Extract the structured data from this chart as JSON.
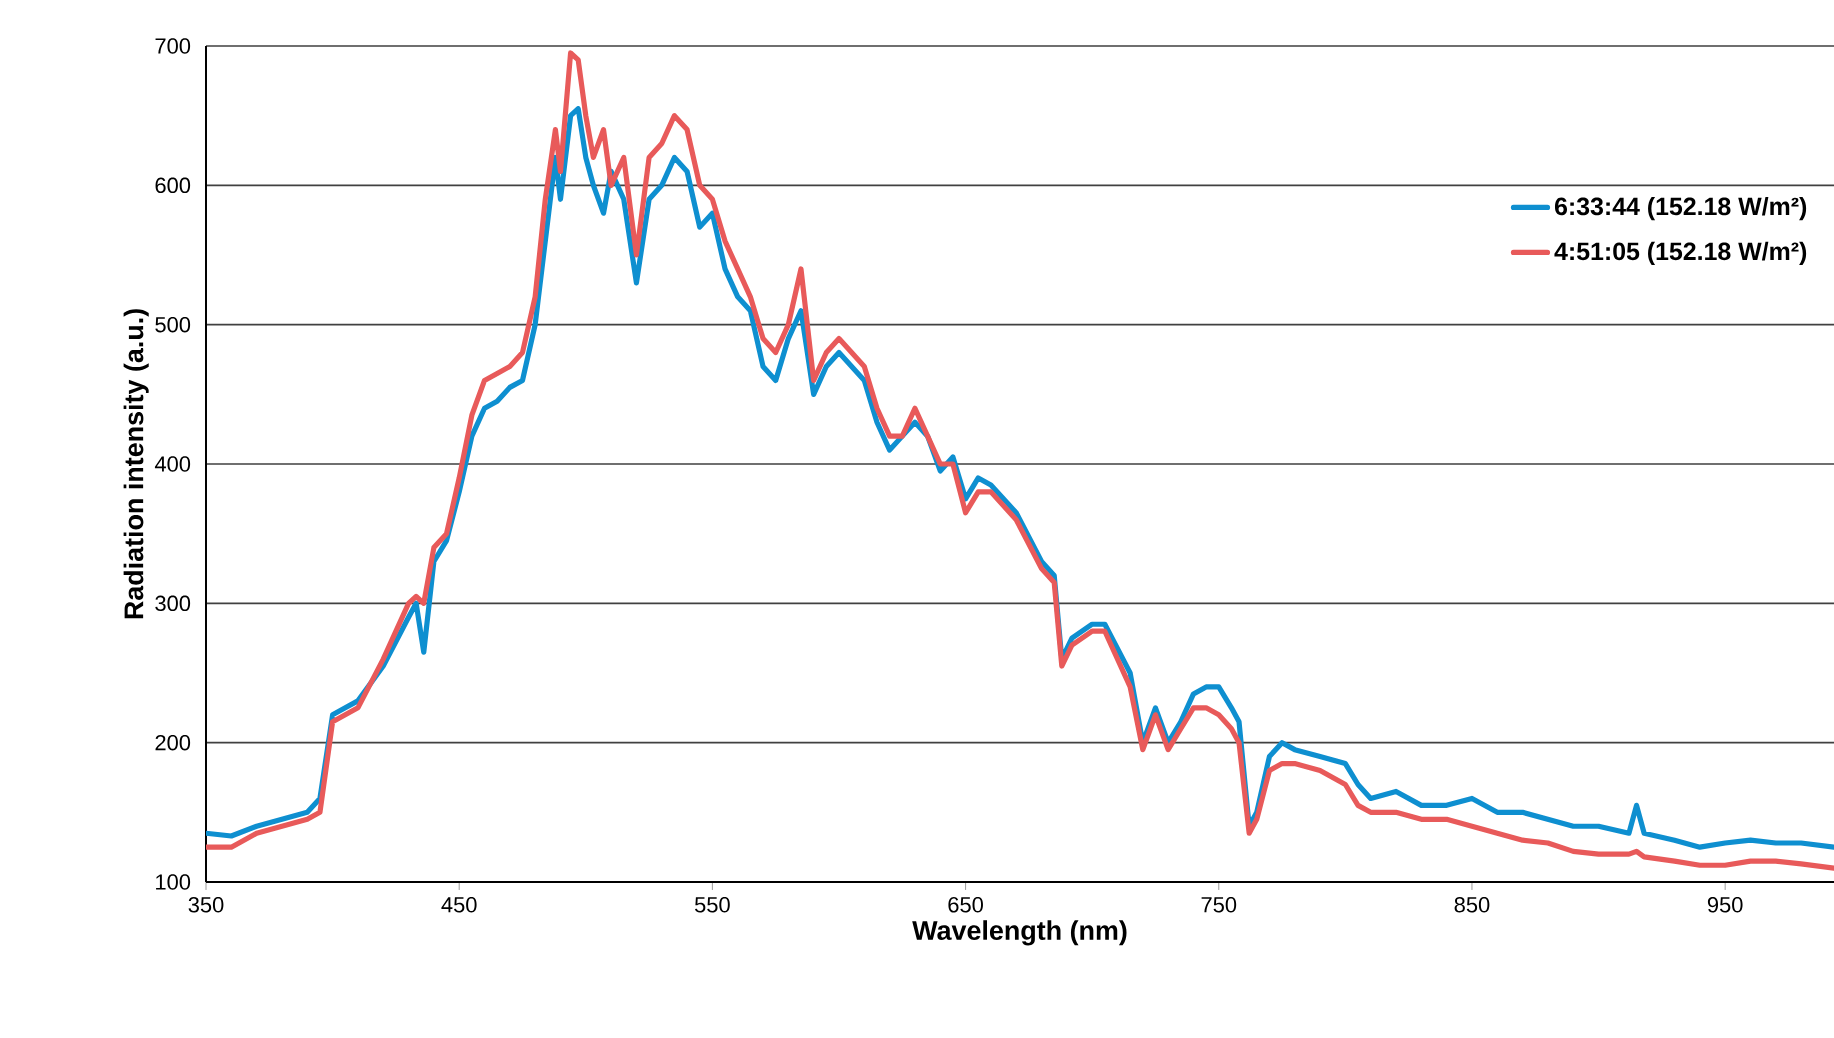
{
  "chart_data": {
    "type": "line",
    "xlabel": "Wavelength (nm)",
    "ylabel": "Radiation intensity (a.u.)",
    "xlim": [
      350,
      993
    ],
    "xticks": [
      350,
      450,
      550,
      650,
      750,
      850,
      950
    ],
    "ylim": [
      100,
      700
    ],
    "yticks": [
      100,
      200,
      300,
      400,
      500,
      600,
      700
    ],
    "grid": "y",
    "legend": "right",
    "marker": "none",
    "x": [
      350,
      360,
      370,
      380,
      390,
      395,
      400,
      405,
      410,
      420,
      430,
      433,
      436,
      440,
      445,
      450,
      455,
      460,
      465,
      470,
      475,
      480,
      484,
      488,
      490,
      494,
      497,
      500,
      503,
      507,
      510,
      515,
      520,
      525,
      530,
      535,
      540,
      545,
      550,
      555,
      560,
      565,
      570,
      575,
      580,
      585,
      590,
      595,
      600,
      610,
      615,
      620,
      625,
      630,
      635,
      640,
      645,
      650,
      655,
      660,
      670,
      680,
      685,
      688,
      692,
      700,
      705,
      715,
      720,
      725,
      730,
      735,
      740,
      745,
      750,
      755,
      758,
      762,
      765,
      770,
      775,
      780,
      790,
      800,
      805,
      810,
      820,
      830,
      840,
      850,
      860,
      870,
      880,
      890,
      900,
      912,
      915,
      918,
      930,
      940,
      950,
      960,
      970,
      980,
      993
    ],
    "series": [
      {
        "name": "6:33:44 (152.18 W/m²)",
        "color": "#0e8fd0",
        "values": [
          135,
          133,
          140,
          145,
          150,
          160,
          220,
          225,
          230,
          255,
          290,
          300,
          265,
          330,
          345,
          380,
          420,
          440,
          445,
          455,
          460,
          500,
          560,
          620,
          590,
          650,
          655,
          620,
          600,
          580,
          610,
          590,
          530,
          590,
          600,
          620,
          610,
          570,
          580,
          540,
          520,
          510,
          470,
          460,
          490,
          510,
          450,
          470,
          480,
          460,
          430,
          410,
          420,
          430,
          420,
          395,
          405,
          375,
          390,
          385,
          365,
          330,
          320,
          260,
          275,
          285,
          285,
          250,
          200,
          225,
          200,
          215,
          235,
          240,
          240,
          225,
          215,
          140,
          150,
          190,
          200,
          195,
          190,
          185,
          170,
          160,
          165,
          155,
          155,
          160,
          150,
          150,
          145,
          140,
          140,
          135,
          155,
          135,
          130,
          125,
          128,
          130,
          128,
          128,
          125
        ]
      },
      {
        "name": "4:51:05 (152.18 W/m²)",
        "color": "#e85a5a",
        "values": [
          125,
          125,
          135,
          140,
          145,
          150,
          215,
          220,
          225,
          260,
          300,
          305,
          300,
          340,
          350,
          390,
          435,
          460,
          465,
          470,
          480,
          520,
          590,
          640,
          610,
          695,
          690,
          650,
          620,
          640,
          600,
          620,
          550,
          620,
          630,
          650,
          640,
          600,
          590,
          560,
          540,
          520,
          490,
          480,
          500,
          540,
          460,
          480,
          490,
          470,
          440,
          420,
          420,
          440,
          420,
          400,
          400,
          365,
          380,
          380,
          360,
          325,
          315,
          255,
          270,
          280,
          280,
          240,
          195,
          220,
          195,
          210,
          225,
          225,
          220,
          210,
          200,
          135,
          145,
          180,
          185,
          185,
          180,
          170,
          155,
          150,
          150,
          145,
          145,
          140,
          135,
          130,
          128,
          122,
          120,
          120,
          122,
          118,
          115,
          112,
          112,
          115,
          115,
          113,
          110
        ]
      }
    ]
  }
}
